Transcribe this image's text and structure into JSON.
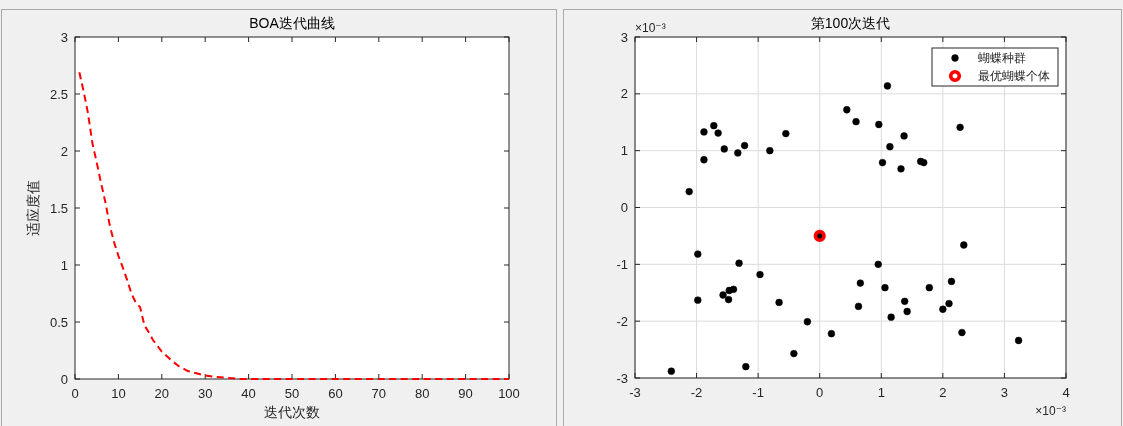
{
  "chart_data": [
    {
      "type": "line",
      "title": "BOA迭代曲线",
      "xlabel": "迭代次数",
      "ylabel": "适应度值",
      "color": "#ff0000",
      "line_style": "dashed",
      "x": [
        1,
        2,
        3,
        4,
        5,
        6,
        7,
        8,
        9,
        10,
        11,
        12,
        13,
        14,
        15,
        16,
        17,
        18,
        19,
        20,
        22,
        24,
        26,
        28,
        30,
        32,
        35,
        38,
        40,
        50,
        60,
        70,
        80,
        90,
        100
      ],
      "values": [
        2.69,
        2.52,
        2.33,
        2.07,
        1.9,
        1.72,
        1.55,
        1.35,
        1.2,
        1.08,
        0.98,
        0.87,
        0.75,
        0.67,
        0.63,
        0.47,
        0.41,
        0.34,
        0.29,
        0.24,
        0.17,
        0.11,
        0.07,
        0.05,
        0.03,
        0.02,
        0.01,
        0,
        0,
        0,
        0,
        0,
        0,
        0,
        0
      ],
      "xlim": [
        0,
        100
      ],
      "ylim": [
        0,
        3
      ],
      "xticks": [
        0,
        10,
        20,
        30,
        40,
        50,
        60,
        70,
        80,
        90,
        100
      ],
      "yticks": [
        0,
        0.5,
        1,
        1.5,
        2,
        2.5,
        3
      ]
    },
    {
      "type": "scatter",
      "title": "第100次迭代",
      "marker": "circle",
      "grid": true,
      "legend": "top right",
      "annotations": [
        "×10⁻³",
        "×10⁻³"
      ],
      "xlim": [
        -3,
        4
      ],
      "ylim": [
        -3,
        3
      ],
      "xticks": [
        -3,
        -2,
        -1,
        0,
        1,
        2,
        3,
        4
      ],
      "yticks": [
        -3,
        -2,
        -1,
        0,
        1,
        2,
        3
      ],
      "series": [
        {
          "name": "蝴蝶种群",
          "color": "#000000",
          "x": [
            -2.12,
            -1.88,
            -1.88,
            -1.72,
            -1.65,
            -1.55,
            -1.33,
            -1.22,
            -0.81,
            -0.55,
            0.44,
            0.59,
            1.1,
            0.96,
            1.02,
            1.14,
            1.37,
            1.32,
            1.64,
            1.69,
            2.28,
            0,
            -1.98,
            -1.98,
            -2.41,
            -1.31,
            -0.97,
            -1.57,
            -1.48,
            -1.47,
            -1.4,
            -0.66,
            -1.2,
            -0.42,
            -0.2,
            0.19,
            0.66,
            0.63,
            0.95,
            1.06,
            1.16,
            1.38,
            1.42,
            1.78,
            2,
            2.1,
            2.14,
            2.31,
            2.34,
            3.23
          ],
          "values": [
            0.28,
            1.33,
            0.84,
            1.44,
            1.31,
            1.03,
            0.96,
            1.09,
            1,
            1.3,
            1.72,
            1.51,
            2.14,
            1.46,
            0.79,
            1.07,
            1.26,
            0.68,
            0.81,
            0.79,
            1.41,
            -0.5,
            -0.82,
            -1.63,
            -2.88,
            -0.98,
            -1.18,
            -1.54,
            -1.62,
            -1.46,
            -1.44,
            -1.67,
            -2.8,
            -2.57,
            -2.01,
            -2.22,
            -1.33,
            -1.74,
            -1,
            -1.41,
            -1.93,
            -1.65,
            -1.83,
            -1.41,
            -1.79,
            -1.69,
            -1.3,
            -2.2,
            -0.66,
            -2.34
          ]
        },
        {
          "name": "最优蝴蝶个体",
          "color": "#ff0000",
          "x": [
            0
          ],
          "values": [
            -0.5
          ]
        }
      ]
    }
  ]
}
